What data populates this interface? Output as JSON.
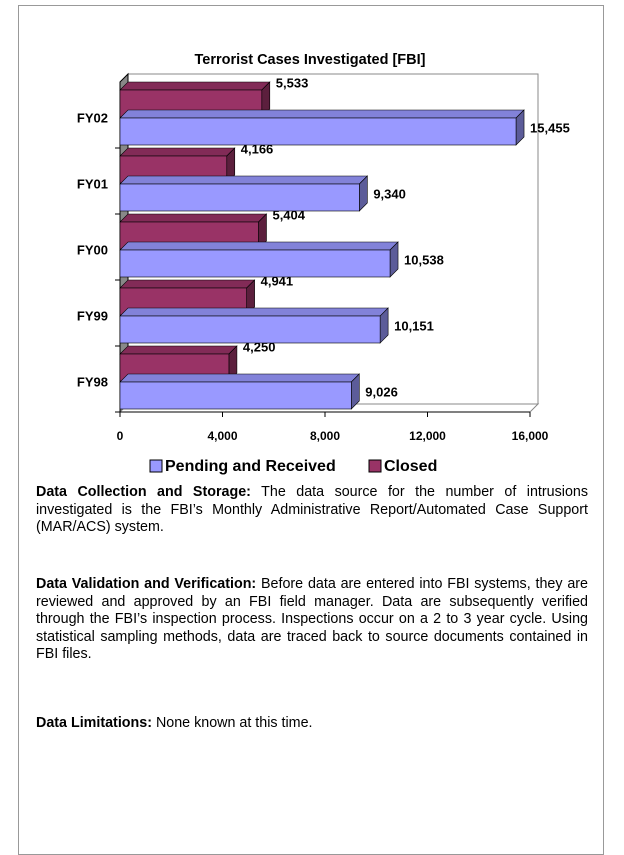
{
  "chart_data": {
    "type": "bar3d",
    "title": "Terrorist Cases Investigated [FBI]",
    "categories": [
      "FY98",
      "FY99",
      "FY00",
      "FY01",
      "FY02"
    ],
    "series": [
      {
        "name": "Pending and Received",
        "color": "#9999ff",
        "values": [
          9026,
          10151,
          10538,
          9340,
          15455
        ],
        "value_labels": [
          "9,026",
          "10,151",
          "10,538",
          "9,340",
          "15,455"
        ]
      },
      {
        "name": "Closed",
        "color": "#993366",
        "values": [
          4250,
          4941,
          5404,
          4166,
          5533
        ],
        "value_labels": [
          "4,250",
          "4,941",
          "5,404",
          "4,166",
          "5,533"
        ]
      }
    ],
    "xlim": [
      0,
      16000
    ],
    "xticks": [
      0,
      {
        "value": 4000,
        "label": "4,000"
      },
      {
        "value": 8000,
        "label": "8,000"
      },
      {
        "value": 12000,
        "label": "12,000"
      },
      {
        "value": 16000,
        "label": "16,000"
      }
    ],
    "orientation": "horizontal",
    "legend": "bottom",
    "grid": false
  },
  "sections": [
    {
      "heading": "Data Collection and Storage:",
      "text": " The data source for the number of intrusions investigated is the FBI’s Monthly Administrative Report/Automated Case Support (MAR/ACS) system."
    },
    {
      "heading": "Data Validation and Verification:",
      "text": " Before data are entered into FBI systems, they are reviewed and approved by an FBI field manager. Data are subsequently verified through the FBI’s inspection process. Inspections occur on a 2 to 3 year cycle. Using statistical sampling methods, data are traced back to source documents contained in FBI files."
    },
    {
      "heading": "Data Limitations:",
      "text": " None known at this time."
    }
  ]
}
